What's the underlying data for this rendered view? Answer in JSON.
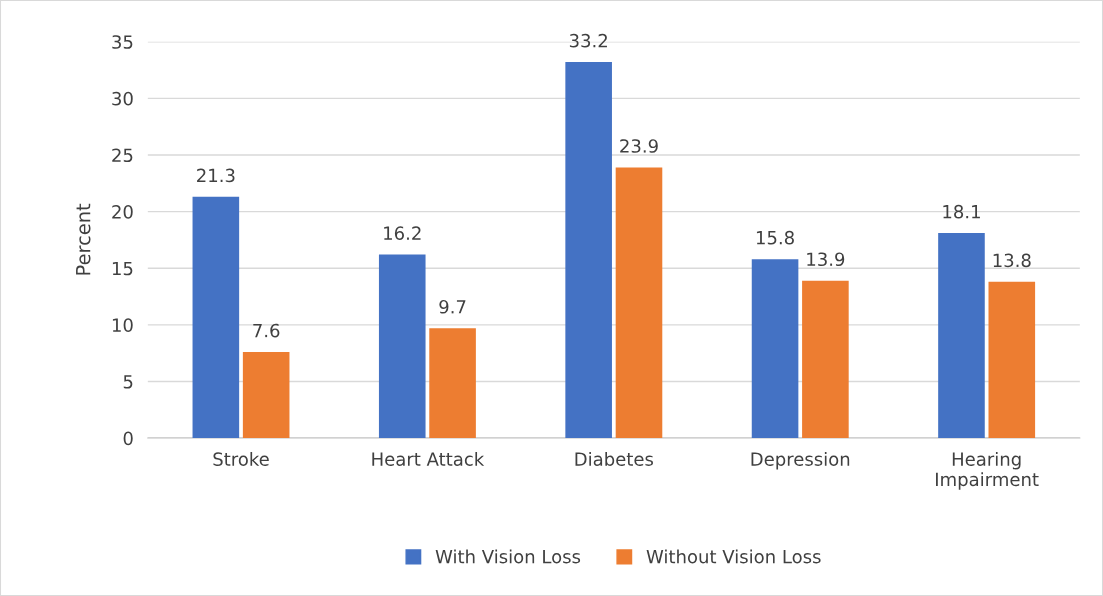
{
  "chart_data": {
    "type": "bar",
    "ylabel": "Percent",
    "categories": [
      "Stroke",
      "Heart Attack",
      "Diabetes",
      "Depression",
      "Hearing\nImpairment"
    ],
    "series": [
      {
        "name": "With Vision Loss",
        "color": "#4472c4",
        "values": [
          21.3,
          16.2,
          33.2,
          15.8,
          18.1
        ]
      },
      {
        "name": "Without Vision Loss",
        "color": "#ed7d31",
        "values": [
          7.6,
          9.7,
          23.9,
          13.9,
          13.8
        ]
      }
    ],
    "ylim": [
      0,
      35
    ],
    "yticks": [
      0,
      5,
      10,
      15,
      20,
      25,
      30,
      35
    ],
    "grid": "y",
    "legend": "bottom",
    "data_labels": true
  }
}
